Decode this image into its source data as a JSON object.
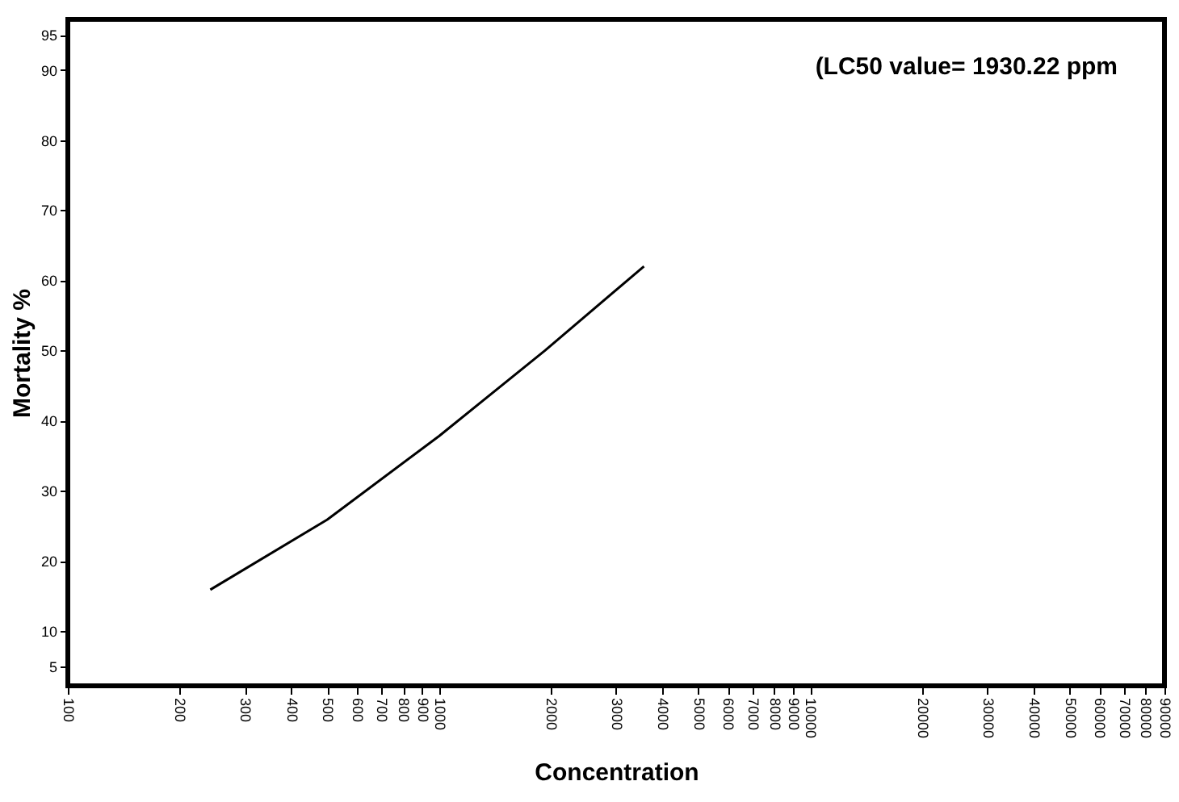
{
  "chart_data": {
    "type": "line",
    "xlabel": "Concentration",
    "ylabel": "Mortality %",
    "annotations": [
      "(LC50 value= 1930.22 ppm"
    ],
    "x": [
      242,
      500,
      1000,
      1930,
      3565
    ],
    "series": [
      {
        "color": "#000000",
        "values": [
          15.9,
          25.9,
          37.8,
          50,
          62
        ]
      }
    ],
    "log": "x",
    "xlim": [
      100,
      90000
    ],
    "xticks": [
      100,
      200,
      300,
      400,
      500,
      600,
      700,
      800,
      900,
      1000,
      2000,
      3000,
      4000,
      5000,
      6000,
      7000,
      8000,
      9000,
      10000,
      20000,
      30000,
      40000,
      50000,
      60000,
      70000,
      80000,
      90000
    ],
    "ylim": [
      2.2,
      97.2
    ],
    "yticks": [
      5,
      10,
      20,
      30,
      40,
      50,
      60,
      70,
      80,
      90,
      95
    ],
    "grid": false,
    "legend": false,
    "marker": "none",
    "line_style": "solid"
  }
}
